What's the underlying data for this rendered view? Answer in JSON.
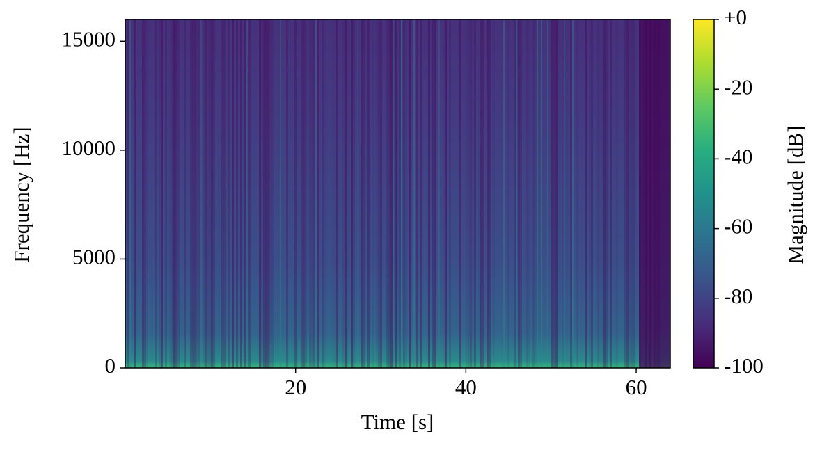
{
  "chart_data": {
    "type": "spectrogram",
    "x_label": "Time [s]",
    "y_label": "Frequency [Hz]",
    "xlim": [
      0,
      64
    ],
    "xticks": [
      20,
      40,
      60
    ],
    "ylim": [
      0,
      16000
    ],
    "yticks": [
      0,
      5000,
      10000,
      15000
    ],
    "colormap": "viridis",
    "colorbar": {
      "label": "Magnitude [dB]",
      "lim": [
        -100,
        0
      ],
      "ticks": [
        {
          "value": 0,
          "label": "+0"
        },
        -20,
        -40,
        -60,
        -80,
        -100
      ]
    }
  }
}
